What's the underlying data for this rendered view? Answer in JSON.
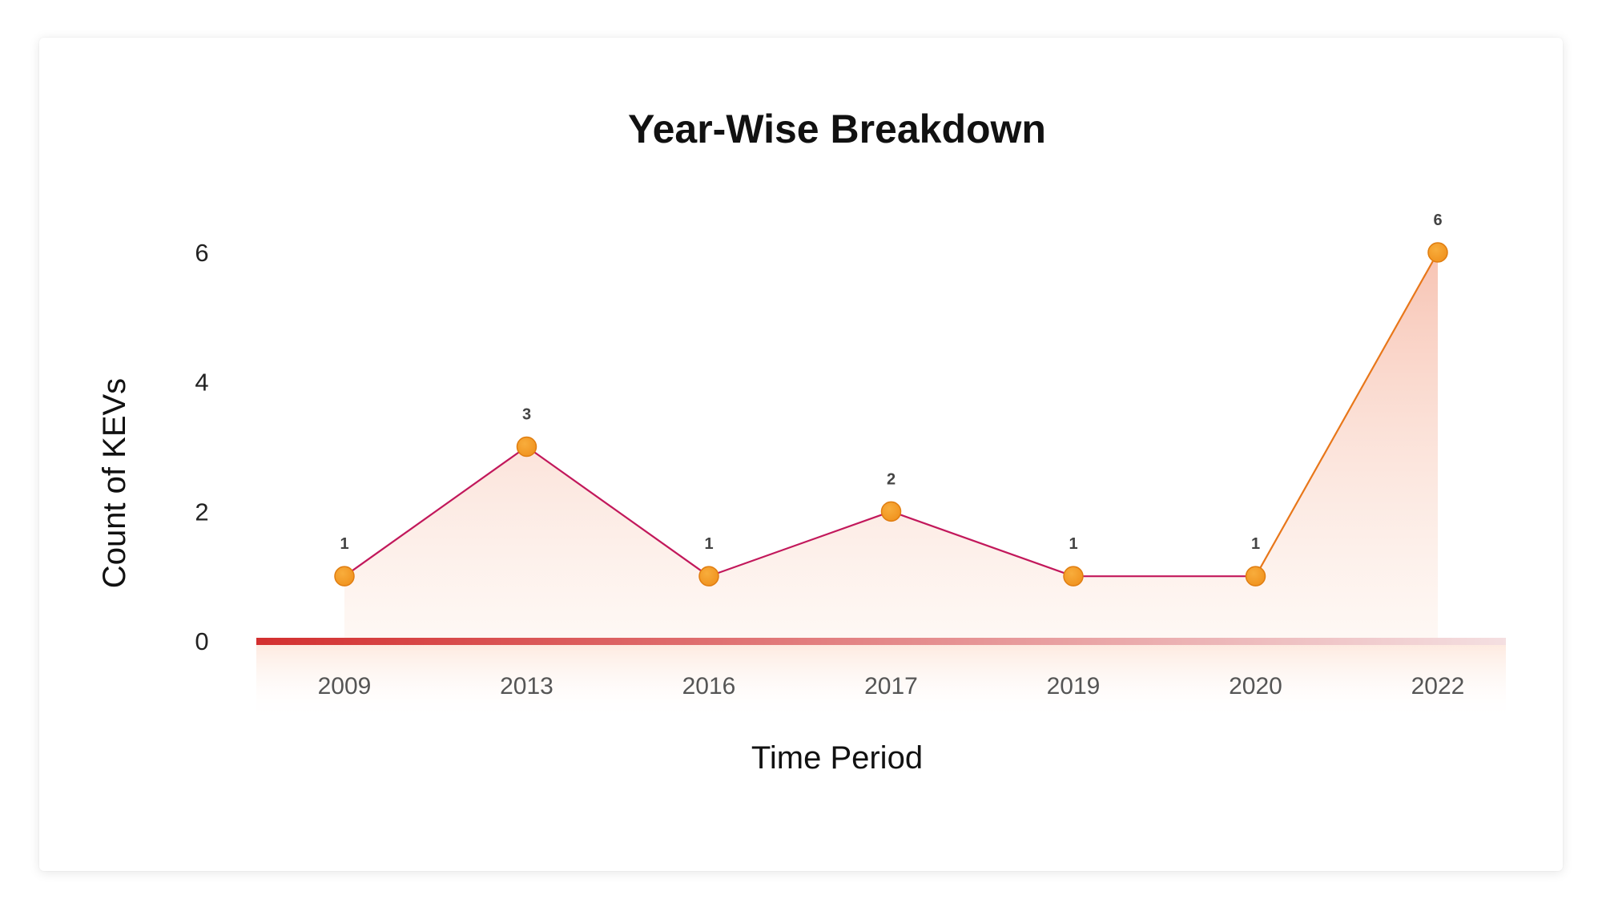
{
  "chart_data": {
    "type": "area",
    "title": "Year-Wise Breakdown",
    "xlabel": "Time Period",
    "ylabel": "Count of KEVs",
    "categories": [
      "2009",
      "2013",
      "2016",
      "2017",
      "2019",
      "2020",
      "2022"
    ],
    "series": [
      {
        "values": [
          1,
          3,
          1,
          2,
          1,
          1,
          6
        ]
      }
    ],
    "data_labels": [
      "1",
      "3",
      "1",
      "2",
      "1",
      "1",
      "6"
    ],
    "y_ticks": [
      "0",
      "2",
      "4",
      "6"
    ],
    "ylim": [
      0,
      6
    ],
    "grid": true,
    "legend": "none",
    "colors": {
      "line_start": "#c2185b",
      "line_end": "#e8771a",
      "marker": "#f0921e",
      "marker_edge": "#e07d10",
      "area_top": "#f6b9a6",
      "area_bottom": "#fdf0e8",
      "grid": "#f7c6b8",
      "baseline_start": "#d32f2f",
      "baseline_end": "#f4dfe1"
    }
  }
}
